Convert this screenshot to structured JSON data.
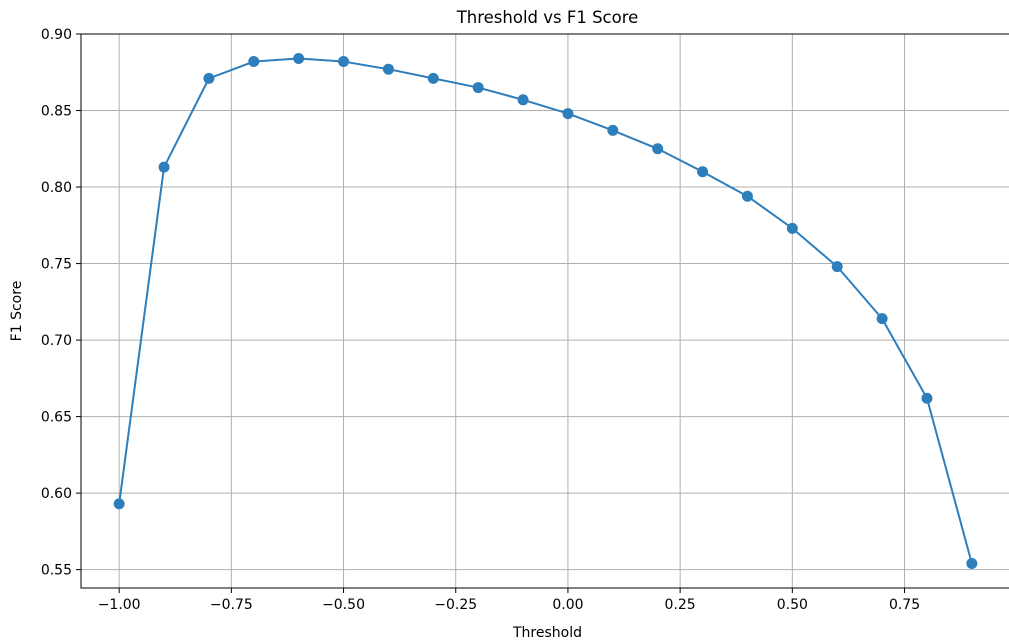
{
  "chart_data": {
    "type": "line",
    "title": "Threshold vs F1 Score",
    "xlabel": "Threshold",
    "ylabel": "F1 Score",
    "xlim": [
      -1.085,
      0.985
    ],
    "ylim": [
      0.538,
      0.9
    ],
    "x_ticks": [
      -1.0,
      -0.75,
      -0.5,
      -0.25,
      0.0,
      0.25,
      0.5,
      0.75
    ],
    "x_tick_labels": [
      "−1.00",
      "−0.75",
      "−0.50",
      "−0.25",
      "0.00",
      "0.25",
      "0.50",
      "0.75"
    ],
    "y_ticks": [
      0.55,
      0.6,
      0.65,
      0.7,
      0.75,
      0.8,
      0.85,
      0.9
    ],
    "y_tick_labels": [
      "0.55",
      "0.60",
      "0.65",
      "0.70",
      "0.75",
      "0.80",
      "0.85",
      "0.90"
    ],
    "grid": true,
    "marker": "circle",
    "color": "#2e7ebc",
    "series": [
      {
        "x": [
          -1.0,
          -0.9,
          -0.8,
          -0.7,
          -0.6,
          -0.5,
          -0.4,
          -0.3,
          -0.2,
          -0.1,
          0.0,
          0.1,
          0.2,
          0.3,
          0.4,
          0.5,
          0.6,
          0.7,
          0.8,
          0.9
        ],
        "values": [
          0.593,
          0.813,
          0.871,
          0.882,
          0.884,
          0.882,
          0.877,
          0.871,
          0.865,
          0.857,
          0.848,
          0.837,
          0.825,
          0.81,
          0.794,
          0.773,
          0.748,
          0.714,
          0.662,
          0.554
        ]
      }
    ]
  }
}
